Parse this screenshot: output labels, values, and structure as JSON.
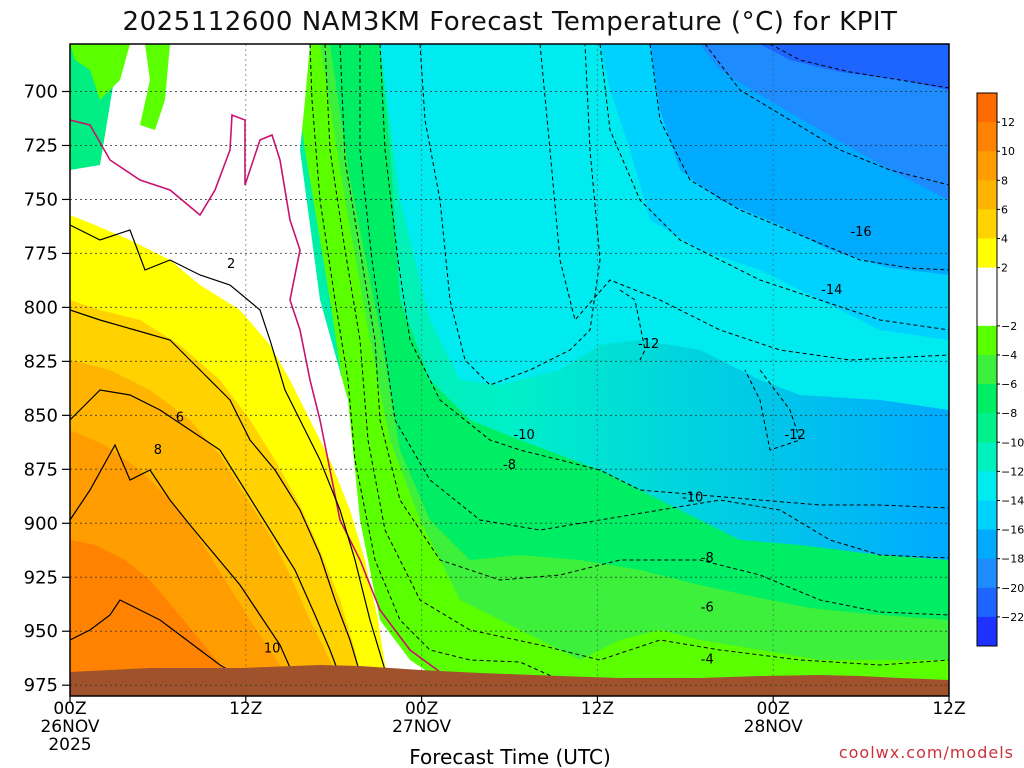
{
  "chart_data": {
    "type": "heatmap",
    "title": "2025112600 NAM3KM Forecast Temperature (°C) for KPIT",
    "xlabel": "Forecast Time (UTC)",
    "credit": "coolwx.com/models",
    "x_ticks": [
      {
        "hours": 0,
        "lines": [
          "00Z",
          "26NOV",
          "2025"
        ]
      },
      {
        "hours": 12,
        "lines": [
          "12Z"
        ]
      },
      {
        "hours": 24,
        "lines": [
          "00Z",
          "27NOV"
        ]
      },
      {
        "hours": 36,
        "lines": [
          "12Z"
        ]
      },
      {
        "hours": 48,
        "lines": [
          "00Z",
          "28NOV"
        ]
      },
      {
        "hours": 60,
        "lines": [
          "12Z"
        ]
      }
    ],
    "xlim_hours": [
      0,
      60
    ],
    "y_ticks": [
      700,
      725,
      750,
      775,
      800,
      825,
      850,
      875,
      900,
      925,
      950,
      975
    ],
    "ylim_hPa": [
      678,
      980
    ],
    "grid": true,
    "colorbar": {
      "ticks": [
        12,
        10,
        8,
        6,
        4,
        2,
        -2,
        -4,
        -6,
        -8,
        -10,
        -12,
        -14,
        -16,
        -18,
        -20,
        -22
      ],
      "bins": [
        {
          "lo": 12,
          "hi": 14,
          "color": "#ff6a00"
        },
        {
          "lo": 10,
          "hi": 12,
          "color": "#ff8200"
        },
        {
          "lo": 8,
          "hi": 10,
          "color": "#ff9c00"
        },
        {
          "lo": 6,
          "hi": 8,
          "color": "#ffb400"
        },
        {
          "lo": 4,
          "hi": 6,
          "color": "#ffd200"
        },
        {
          "lo": 2,
          "hi": 4,
          "color": "#ffff00"
        },
        {
          "lo": -2,
          "hi": 2,
          "color": "#ffffff"
        },
        {
          "lo": -4,
          "hi": -2,
          "color": "#5aff00"
        },
        {
          "lo": -6,
          "hi": -4,
          "color": "#3cf03c"
        },
        {
          "lo": -8,
          "hi": -6,
          "color": "#00ee64"
        },
        {
          "lo": -10,
          "hi": -8,
          "color": "#00f08c"
        },
        {
          "lo": -12,
          "hi": -10,
          "color": "#00f0be"
        },
        {
          "lo": -14,
          "hi": -12,
          "color": "#00ebf0"
        },
        {
          "lo": -16,
          "hi": -14,
          "color": "#00d2ff"
        },
        {
          "lo": -18,
          "hi": -16,
          "color": "#00aaff"
        },
        {
          "lo": -20,
          "hi": -18,
          "color": "#1e8cff"
        },
        {
          "lo": -22,
          "hi": -20,
          "color": "#1e64ff"
        },
        {
          "lo": -24,
          "hi": -22,
          "color": "#1e32ff"
        }
      ]
    },
    "contour_labels": [
      {
        "text": "2",
        "hours": 11,
        "hPa": 780
      },
      {
        "text": "6",
        "hours": 7.5,
        "hPa": 851
      },
      {
        "text": "8",
        "hours": 6,
        "hPa": 866
      },
      {
        "text": "10",
        "hours": 13.8,
        "hPa": 958
      },
      {
        "text": "-10",
        "hours": 31,
        "hPa": 859
      },
      {
        "text": "-8",
        "hours": 30,
        "hPa": 873
      },
      {
        "text": "-12",
        "hours": 39.5,
        "hPa": 817
      },
      {
        "text": "-10",
        "hours": 42.5,
        "hPa": 888
      },
      {
        "text": "-8",
        "hours": 43.5,
        "hPa": 916
      },
      {
        "text": "-6",
        "hours": 43.5,
        "hPa": 939
      },
      {
        "text": "-4",
        "hours": 43.5,
        "hPa": 963
      },
      {
        "text": "-12",
        "hours": 49.5,
        "hPa": 859
      },
      {
        "text": "-14",
        "hours": 52,
        "hPa": 792
      },
      {
        "text": "-16",
        "hours": 54,
        "hPa": 765
      }
    ]
  },
  "colors": {
    "ground": "#a0522d",
    "freezing_line": "#c8146e"
  }
}
